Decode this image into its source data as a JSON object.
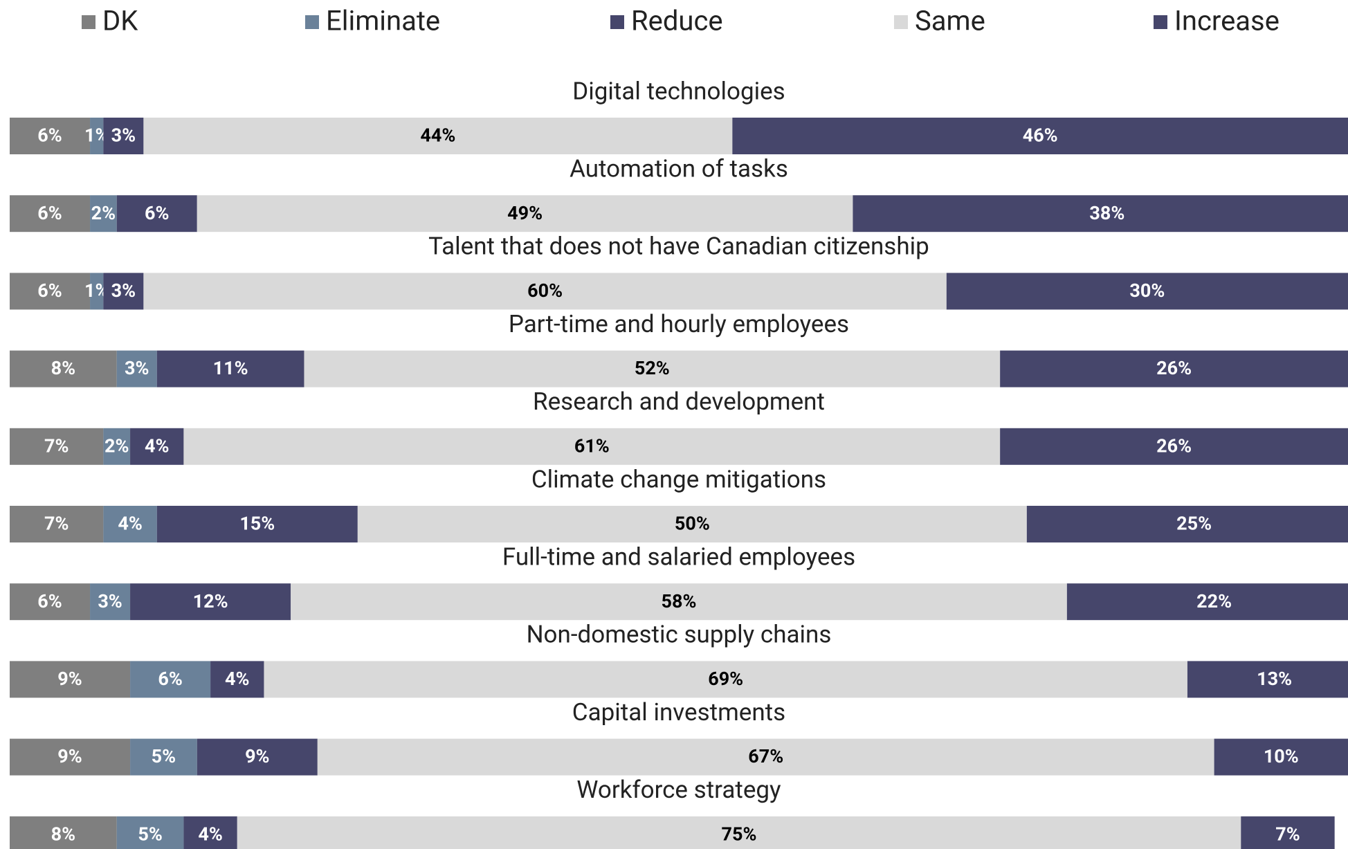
{
  "chart_data": {
    "type": "stacked_bar_horizontal",
    "categories": [
      "Digital technologies",
      "Automation of tasks",
      "Talent that does not have Canadian citizenship",
      "Part-time and hourly employees",
      "Research and development",
      "Climate change mitigations",
      "Full-time and salaried employees",
      "Non-domestic supply chains",
      "Capital investments",
      "Workforce strategy"
    ],
    "xlim": [
      0,
      100
    ],
    "legend": "top",
    "series": [
      {
        "name": "DK",
        "color": "#7f7f7f",
        "label_color": "#ffffff",
        "values": [
          6,
          6,
          6,
          8,
          7,
          7,
          6,
          9,
          9,
          8
        ],
        "value_labels": [
          "6%",
          "6%",
          "6%",
          "8%",
          "7%",
          "7%",
          "6%",
          "9%",
          "9%",
          "8%"
        ]
      },
      {
        "name": "Eliminate",
        "color": "#6a8199",
        "label_color": "#ffffff",
        "values": [
          1,
          2,
          1,
          3,
          2,
          4,
          3,
          6,
          5,
          5
        ],
        "value_labels": [
          "1%",
          "2%",
          "1%",
          "3%",
          "2%",
          "4%",
          "3%",
          "6%",
          "5%",
          "5%"
        ]
      },
      {
        "name": "Reduce",
        "color": "#46466b",
        "label_color": "#ffffff",
        "values": [
          3,
          6,
          3,
          11,
          4,
          15,
          12,
          4,
          9,
          4
        ],
        "value_labels": [
          "3%",
          "6%",
          "3%",
          "11%",
          "4%",
          "15%",
          "12%",
          "4%",
          "9%",
          "4%"
        ]
      },
      {
        "name": "Same",
        "color": "#d9d9d9",
        "label_color": "#000000",
        "values": [
          44,
          49,
          60,
          52,
          61,
          50,
          58,
          69,
          67,
          75
        ],
        "value_labels": [
          "44%",
          "49%",
          "60%",
          "52%",
          "61%",
          "50%",
          "58%",
          "69%",
          "67%",
          "75%"
        ]
      },
      {
        "name": "Increase",
        "color": "#46466b",
        "label_color": "#ffffff",
        "values": [
          46,
          38,
          30,
          26,
          26,
          25,
          22,
          13,
          10,
          7
        ],
        "value_labels": [
          "46%",
          "38%",
          "30%",
          "26%",
          "26%",
          "25%",
          "22%",
          "13%",
          "10%",
          "7%"
        ]
      }
    ]
  }
}
